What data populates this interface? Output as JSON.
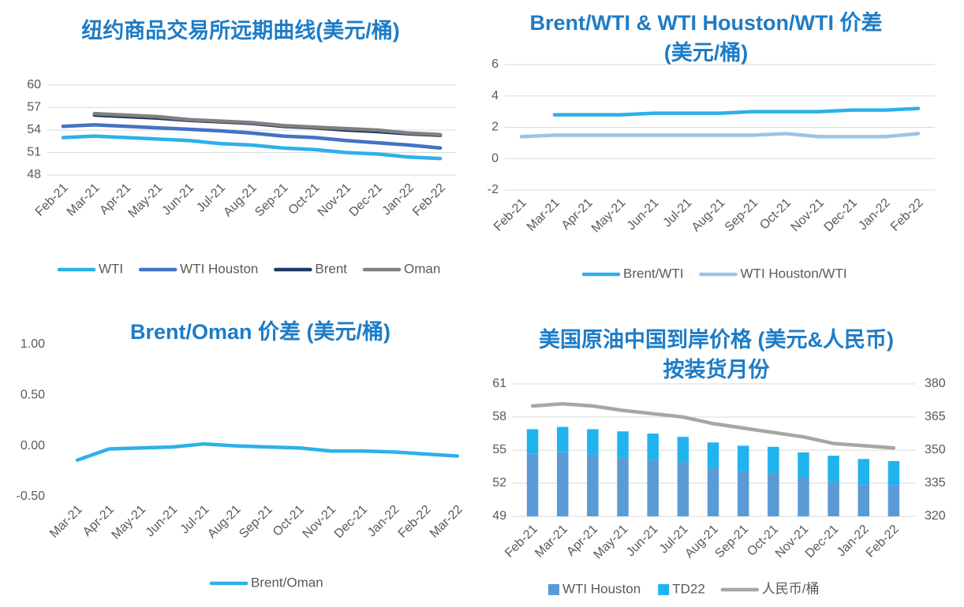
{
  "chart_data": [
    {
      "type": "line",
      "title": "纽约商品交易所远期曲线(美元/桶)",
      "categories": [
        "Feb-21",
        "Mar-21",
        "Apr-21",
        "May-21",
        "Jun-21",
        "Jul-21",
        "Aug-21",
        "Sep-21",
        "Oct-21",
        "Nov-21",
        "Dec-21",
        "Jan-22",
        "Feb-22"
      ],
      "ylim": [
        48,
        60
      ],
      "yticks": [
        48,
        51,
        54,
        57,
        60
      ],
      "grid": true,
      "series": [
        {
          "name": "WTI",
          "color": "#2cb1ea",
          "values": [
            53.0,
            53.2,
            53.0,
            52.8,
            52.6,
            52.2,
            52.0,
            51.6,
            51.4,
            51.0,
            50.8,
            50.4,
            50.2
          ]
        },
        {
          "name": "WTI Houston",
          "color": "#4472c4",
          "values": [
            54.5,
            54.7,
            54.5,
            54.3,
            54.1,
            53.9,
            53.6,
            53.2,
            53.0,
            52.6,
            52.3,
            52.0,
            51.6
          ]
        },
        {
          "name": "Brent",
          "color": "#203864",
          "values": [
            null,
            56.0,
            55.8,
            55.6,
            55.3,
            55.1,
            54.9,
            54.5,
            54.3,
            54.0,
            53.8,
            53.5,
            53.3
          ]
        },
        {
          "name": "Oman",
          "color": "#808080",
          "values": [
            null,
            56.2,
            56.0,
            55.8,
            55.4,
            55.2,
            55.0,
            54.6,
            54.4,
            54.2,
            54.0,
            53.6,
            53.4
          ]
        }
      ]
    },
    {
      "type": "line",
      "title": "Brent/WTI & WTI Houston/WTI 价差 (美元/桶)",
      "categories": [
        "Feb-21",
        "Mar-21",
        "Apr-21",
        "May-21",
        "Jun-21",
        "Jul-21",
        "Aug-21",
        "Sep-21",
        "Oct-21",
        "Nov-21",
        "Dec-21",
        "Jan-22",
        "Feb-22"
      ],
      "ylim": [
        -2,
        6
      ],
      "yticks": [
        -2,
        0,
        2,
        4,
        6
      ],
      "grid": true,
      "series": [
        {
          "name": "Brent/WTI",
          "color": "#2cb1ea",
          "values": [
            null,
            2.8,
            2.8,
            2.8,
            2.9,
            2.9,
            2.9,
            3.0,
            3.0,
            3.0,
            3.1,
            3.1,
            3.2
          ]
        },
        {
          "name": "WTI Houston/WTI",
          "color": "#9dc3e6",
          "values": [
            1.4,
            1.5,
            1.5,
            1.5,
            1.5,
            1.5,
            1.5,
            1.5,
            1.6,
            1.4,
            1.4,
            1.4,
            1.6
          ]
        }
      ]
    },
    {
      "type": "line",
      "title": "Brent/Oman 价差 (美元/桶)",
      "categories": [
        "Mar-21",
        "Apr-21",
        "May-21",
        "Jun-21",
        "Jul-21",
        "Aug-21",
        "Sep-21",
        "Oct-21",
        "Nov-21",
        "Dec-21",
        "Jan-22",
        "Feb-22",
        "Mar-22"
      ],
      "ylim": [
        -0.5,
        1.0
      ],
      "yticks": [
        {
          "value": -0.5,
          "label": "-0.50"
        },
        {
          "value": 0,
          "label": "0.00"
        },
        {
          "value": 0.5,
          "label": "0.50"
        },
        {
          "value": 1.0,
          "label": "1.00"
        }
      ],
      "grid": false,
      "series": [
        {
          "name": "Brent/Oman",
          "color": "#2cb1ea",
          "values": [
            -0.14,
            -0.03,
            -0.02,
            -0.01,
            0.02,
            0.0,
            -0.01,
            -0.02,
            -0.05,
            -0.05,
            -0.06,
            -0.08,
            -0.1
          ]
        }
      ]
    },
    {
      "type": "combo",
      "title": "美国原油中国到岸价格 (美元&人民币) 按装货月份",
      "categories": [
        "Feb-21",
        "Mar-21",
        "Apr-21",
        "May-21",
        "Jun-21",
        "Jul-21",
        "Aug-21",
        "Sep-21",
        "Oct-21",
        "Nov-21",
        "Dec-21",
        "Jan-22",
        "Feb-22"
      ],
      "ylim": [
        49,
        61
      ],
      "yticks": [
        49,
        52,
        55,
        58,
        61
      ],
      "y2lim": [
        320,
        380
      ],
      "y2ticks": [
        320,
        335,
        350,
        365,
        380
      ],
      "grid": true,
      "stacked": true,
      "series": [
        {
          "name": "WTI Houston",
          "type": "bar",
          "color": "#5b9bd5",
          "values": [
            54.7,
            54.8,
            54.6,
            54.3,
            54.1,
            53.9,
            53.4,
            53.1,
            52.9,
            52.5,
            52.1,
            51.9,
            51.8
          ]
        },
        {
          "name": "TD22",
          "type": "bar",
          "color": "#21b3ee",
          "values": [
            2.2,
            2.3,
            2.3,
            2.4,
            2.4,
            2.3,
            2.3,
            2.3,
            2.4,
            2.3,
            2.4,
            2.3,
            2.2
          ]
        },
        {
          "name": "人民币/桶",
          "type": "line",
          "axis": "y2",
          "color": "#a6a6a6",
          "values": [
            370,
            371,
            370,
            368,
            366.5,
            365,
            362,
            360,
            358,
            356,
            353,
            352,
            351
          ]
        }
      ]
    }
  ]
}
